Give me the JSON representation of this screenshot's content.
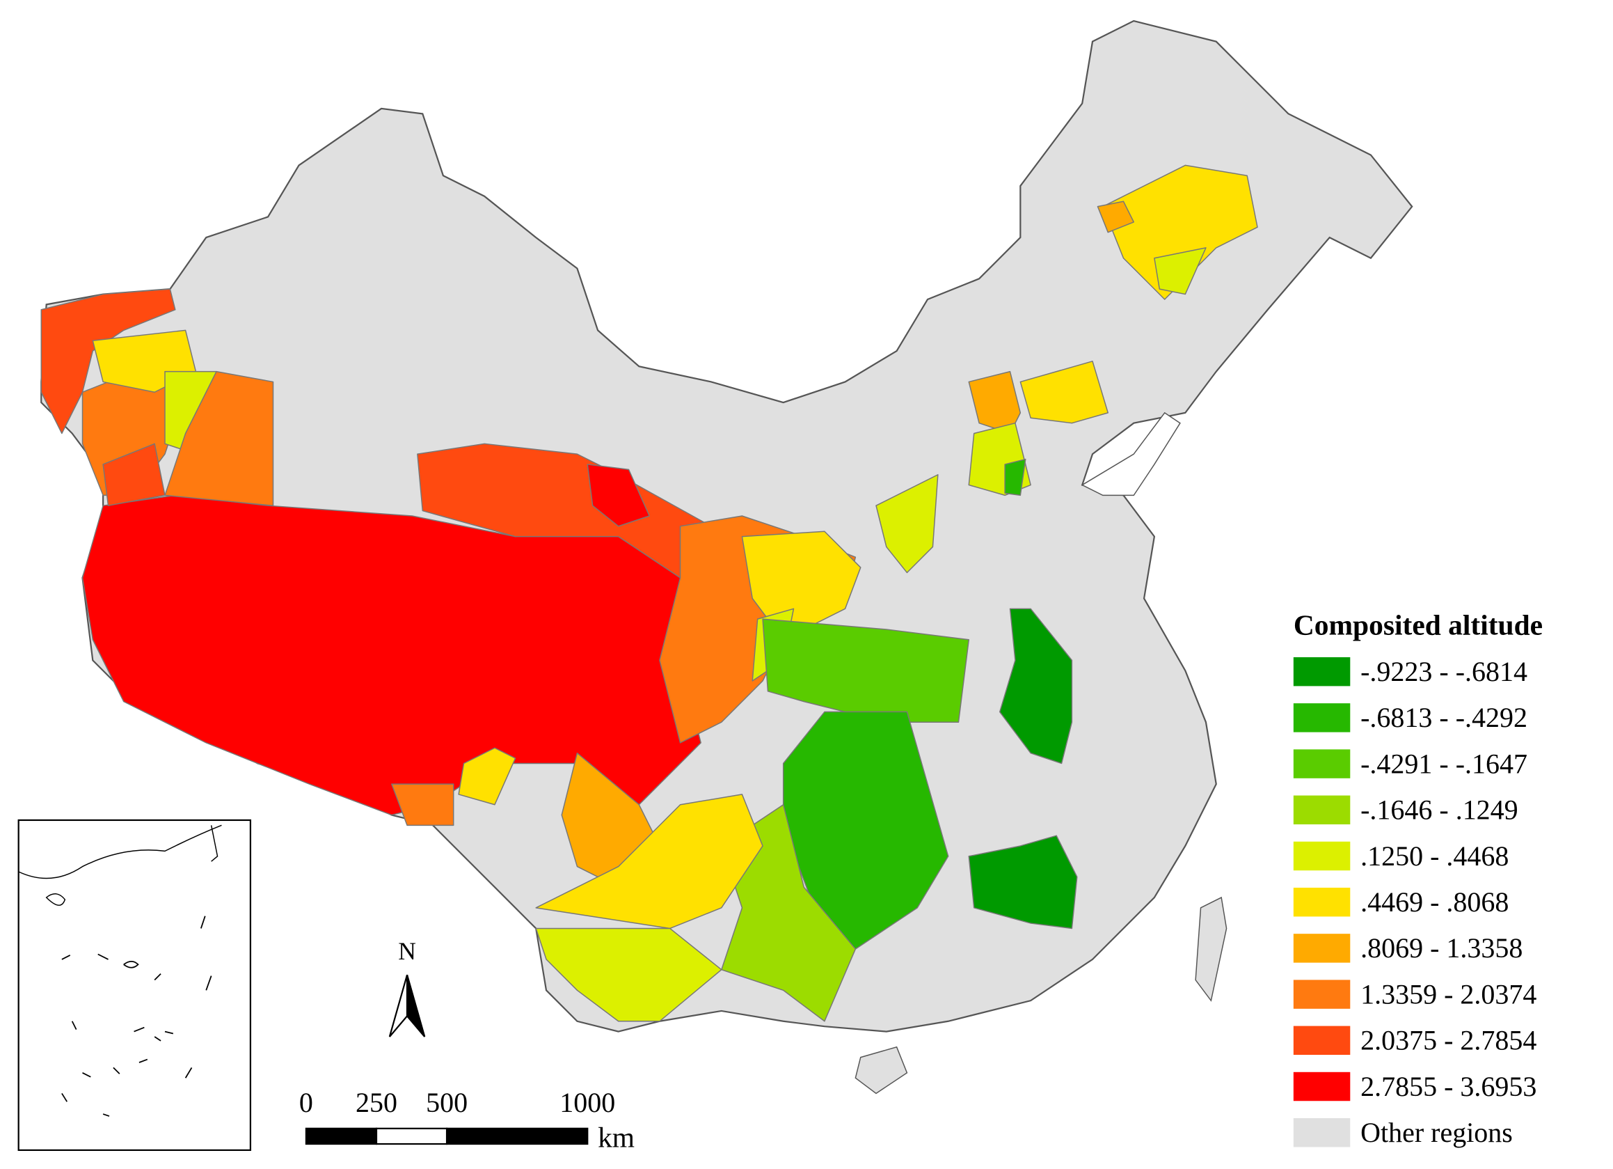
{
  "legend": {
    "title": "Composited altitude",
    "items": [
      {
        "label": "-.9223 - -.6814",
        "color": "#009a00"
      },
      {
        "label": "-.6813 - -.4292",
        "color": "#26b800"
      },
      {
        "label": "-.4291 - -.1647",
        "color": "#5acc00"
      },
      {
        "label": "-.1646 - .1249",
        "color": "#9cdc00"
      },
      {
        "label": ".1250 - .4468",
        "color": "#dcf000"
      },
      {
        "label": ".4469 - .8068",
        "color": "#ffe100"
      },
      {
        "label": ".8069 - 1.3358",
        "color": "#ffaa00"
      },
      {
        "label": "1.3359 - 2.0374",
        "color": "#ff7a10"
      },
      {
        "label": "2.0375 - 2.7854",
        "color": "#ff4a10"
      },
      {
        "label": "2.7855 - 3.6953",
        "color": "#ff0000"
      }
    ],
    "other": {
      "label": "Other regions",
      "color": "#e0e0e0"
    }
  },
  "scale_bar": {
    "ticks": [
      0,
      250,
      500,
      1000
    ],
    "unit": "km"
  },
  "north_arrow": "N"
}
